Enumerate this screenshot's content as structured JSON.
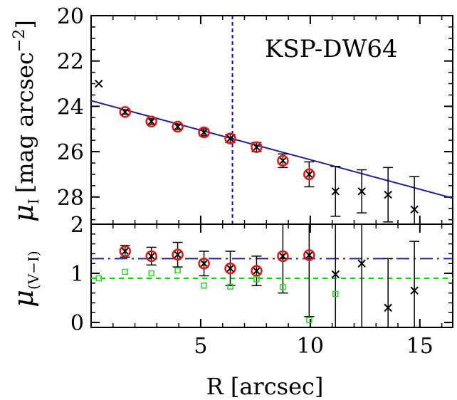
{
  "chart_data": [
    {
      "type": "scatter",
      "panel": "top",
      "label": "KSP-DW64",
      "ylabel": "μ_I [mag arcsec^-2]",
      "ylabel_parts": {
        "symbol": "μ",
        "sub": "I",
        "unit": "[mag arcsec",
        "exp": "−2",
        "close": "]"
      },
      "xlim": [
        0,
        16.5
      ],
      "ylim": [
        29.2,
        20
      ],
      "y_inverted": true,
      "yticks": [
        20,
        22,
        24,
        26,
        28
      ],
      "ytick_labels": [
        "20",
        "22",
        "24",
        "26",
        "28"
      ],
      "grid": false,
      "fit_line": {
        "x": [
          0,
          16.5
        ],
        "y": [
          23.75,
          28.05
        ],
        "color": "#1f1fa0"
      },
      "vline": {
        "x": 6.45,
        "style": "dashed",
        "color": "#0000ff"
      },
      "series": [
        {
          "marker": "x-with-errorbar",
          "color": "#000000",
          "x": [
            0.35,
            1.55,
            2.75,
            3.95,
            5.15,
            6.35,
            7.55,
            8.75,
            9.95,
            11.15,
            12.35,
            13.55,
            14.75
          ],
          "y": [
            23.0,
            24.25,
            24.67,
            24.9,
            25.15,
            25.42,
            25.8,
            26.4,
            27.0,
            27.75,
            27.75,
            27.9,
            28.55
          ],
          "err": [
            0,
            0.1,
            0.12,
            0.12,
            0.15,
            0.18,
            0.2,
            0.3,
            0.55,
            1.1,
            0.95,
            1.2,
            1.45
          ]
        },
        {
          "marker": "open-circle",
          "color": "#e8140f",
          "x": [
            1.55,
            2.75,
            3.95,
            5.15,
            6.35,
            7.55,
            8.75,
            9.95
          ],
          "y": [
            24.25,
            24.67,
            24.9,
            25.15,
            25.42,
            25.8,
            26.4,
            27.0
          ]
        }
      ]
    },
    {
      "type": "scatter",
      "panel": "bottom",
      "xlabel": "R [arcsec]",
      "ylabel": "μ_(V−I)",
      "ylabel_parts": {
        "symbol": "μ",
        "sub": "(V−I)"
      },
      "xlim": [
        0,
        16.5
      ],
      "ylim": [
        -0.1,
        2
      ],
      "xticks": [
        5,
        10,
        15
      ],
      "xtick_labels": [
        "5",
        "10",
        "15"
      ],
      "yticks": [
        0,
        1,
        2
      ],
      "ytick_labels": [
        "0",
        "1",
        "2"
      ],
      "grid": false,
      "hlines": [
        {
          "y": 1.3,
          "style": "dash-dot",
          "color": "#1f1fa0"
        },
        {
          "y": 0.9,
          "style": "dashed",
          "color": "#00e000"
        }
      ],
      "series": [
        {
          "marker": "x-with-errorbar",
          "color": "#000000",
          "x": [
            1.55,
            2.75,
            3.95,
            5.15,
            6.35,
            7.55,
            8.75,
            9.95,
            11.15,
            12.35,
            13.55,
            14.75
          ],
          "y": [
            1.45,
            1.35,
            1.38,
            1.2,
            1.1,
            1.05,
            1.35,
            1.37,
            0.98,
            1.2,
            0.3,
            0.65
          ],
          "err": [
            0.12,
            0.18,
            0.25,
            0.25,
            0.35,
            0.3,
            0.75,
            1.25,
            1.15,
            1.5,
            1.0,
            1.0
          ]
        },
        {
          "marker": "open-circle",
          "color": "#e8140f",
          "x": [
            1.55,
            2.75,
            3.95,
            5.15,
            6.35,
            7.55,
            8.75,
            9.95
          ],
          "y": [
            1.45,
            1.35,
            1.38,
            1.2,
            1.1,
            1.05,
            1.35,
            1.37
          ]
        },
        {
          "marker": "open-square",
          "color": "#22dd22",
          "x": [
            0.35,
            1.55,
            2.75,
            3.95,
            5.15,
            6.35,
            7.55,
            8.75,
            9.95,
            11.15
          ],
          "y": [
            0.9,
            1.03,
            1.0,
            1.06,
            0.75,
            0.73,
            0.88,
            0.72,
            0.05,
            0.58
          ]
        }
      ]
    }
  ]
}
